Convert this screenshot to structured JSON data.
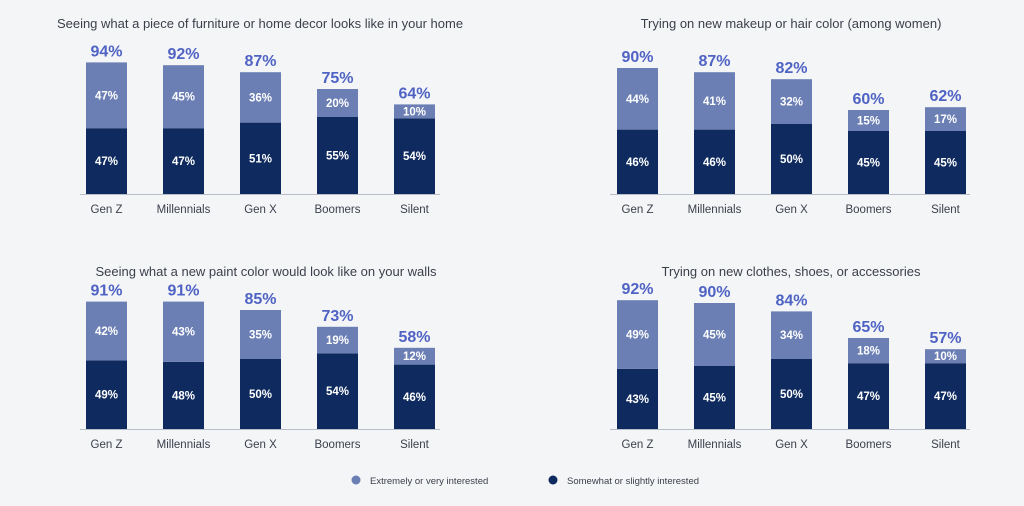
{
  "colors": {
    "top": "#6b7fb5",
    "bottom": "#0e2a5e",
    "total": "#4f63c4",
    "axis": "#b8bec9",
    "background": "#f4f5f7"
  },
  "legend": {
    "top_label": "Extremely or very interested",
    "bottom_label": "Somewhat or slightly interested"
  },
  "chart_data": [
    {
      "type": "bar",
      "stacked": true,
      "title": "Seeing what a piece of furniture or home decor looks like in your home",
      "categories": [
        "Gen Z",
        "Millennials",
        "Gen X",
        "Boomers",
        "Silent"
      ],
      "totals": [
        "94%",
        "92%",
        "87%",
        "75%",
        "64%"
      ],
      "series": [
        {
          "name": "Somewhat or slightly interested",
          "values": [
            47,
            47,
            51,
            55,
            54
          ],
          "labels": [
            "47%",
            "47%",
            "51%",
            "55%",
            "54%"
          ]
        },
        {
          "name": "Extremely or very interested",
          "values": [
            47,
            45,
            36,
            20,
            10
          ],
          "labels": [
            "47%",
            "45%",
            "36%",
            "20%",
            "10%"
          ]
        }
      ]
    },
    {
      "type": "bar",
      "stacked": true,
      "title": "Trying on new makeup or hair color (among women)",
      "categories": [
        "Gen Z",
        "Millennials",
        "Gen X",
        "Boomers",
        "Silent"
      ],
      "totals": [
        "90%",
        "87%",
        "82%",
        "60%",
        "62%"
      ],
      "series": [
        {
          "name": "Somewhat or slightly interested",
          "values": [
            46,
            46,
            50,
            45,
            45
          ],
          "labels": [
            "46%",
            "46%",
            "50%",
            "45%",
            "45%"
          ]
        },
        {
          "name": "Extremely or very interested",
          "values": [
            44,
            41,
            32,
            15,
            17
          ],
          "labels": [
            "44%",
            "41%",
            "32%",
            "15%",
            "17%"
          ]
        }
      ]
    },
    {
      "type": "bar",
      "stacked": true,
      "title": "Seeing what a new paint color would look like on your walls",
      "categories": [
        "Gen Z",
        "Millennials",
        "Gen X",
        "Boomers",
        "Silent"
      ],
      "totals": [
        "91%",
        "91%",
        "85%",
        "73%",
        "58%"
      ],
      "series": [
        {
          "name": "Somewhat or slightly interested",
          "values": [
            49,
            48,
            50,
            54,
            46
          ],
          "labels": [
            "49%",
            "48%",
            "50%",
            "54%",
            "46%"
          ]
        },
        {
          "name": "Extremely or very interested",
          "values": [
            42,
            43,
            35,
            19,
            12
          ],
          "labels": [
            "42%",
            "43%",
            "35%",
            "19%",
            "12%"
          ]
        }
      ]
    },
    {
      "type": "bar",
      "stacked": true,
      "title": "Trying on new clothes, shoes, or accessories",
      "categories": [
        "Gen Z",
        "Millennials",
        "Gen X",
        "Boomers",
        "Silent"
      ],
      "totals": [
        "92%",
        "90%",
        "84%",
        "65%",
        "57%"
      ],
      "series": [
        {
          "name": "Somewhat or slightly interested",
          "values": [
            43,
            45,
            50,
            47,
            47
          ],
          "labels": [
            "43%",
            "45%",
            "50%",
            "47%",
            "47%"
          ]
        },
        {
          "name": "Extremely or very interested",
          "values": [
            49,
            45,
            34,
            18,
            10
          ],
          "labels": [
            "49%",
            "45%",
            "34%",
            "18%",
            "10%"
          ]
        }
      ]
    }
  ]
}
